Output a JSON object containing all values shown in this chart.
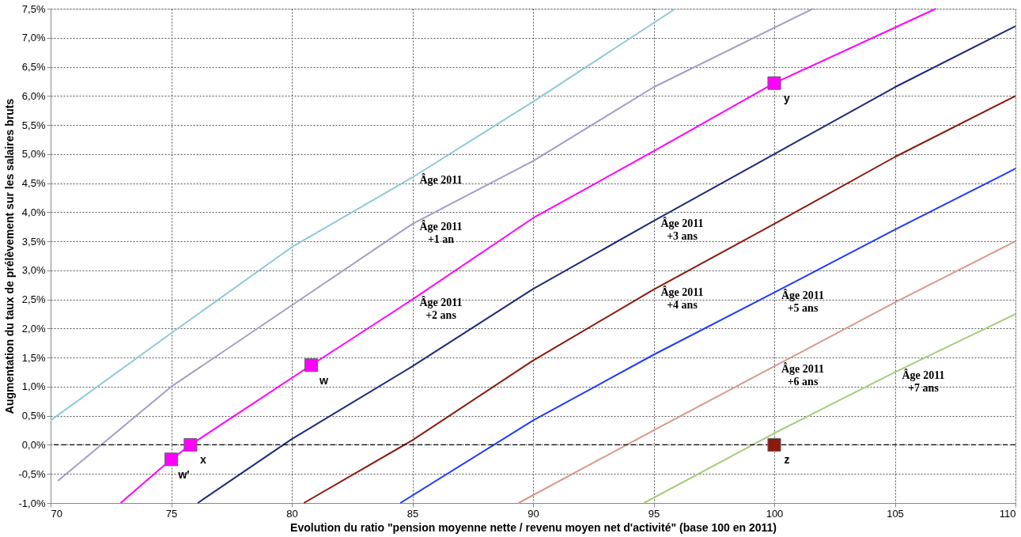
{
  "chart_data": {
    "type": "line",
    "xlabel": "Evolution du ratio \"pension moyenne nette / revenu moyen net d'activité\" (base 100 en 2011)",
    "ylabel": "Augmentation du taux de prélèvement sur les salaires bruts",
    "xlim": [
      70,
      110
    ],
    "xticks": [
      70,
      75,
      80,
      85,
      90,
      95,
      100,
      105,
      110
    ],
    "ylim": [
      -1.0,
      7.5
    ],
    "yticks": [
      {
        "value": -1.0,
        "label": "-1,0%"
      },
      {
        "value": -0.5,
        "label": "-0,5%"
      },
      {
        "value": 0.0,
        "label": "0,0%"
      },
      {
        "value": 0.5,
        "label": "0,5%"
      },
      {
        "value": 1.0,
        "label": "1,0%"
      },
      {
        "value": 1.5,
        "label": "1,5%"
      },
      {
        "value": 2.0,
        "label": "2,0%"
      },
      {
        "value": 2.5,
        "label": "2,5%"
      },
      {
        "value": 3.0,
        "label": "3,0%"
      },
      {
        "value": 3.5,
        "label": "3,5%"
      },
      {
        "value": 4.0,
        "label": "4,0%"
      },
      {
        "value": 4.5,
        "label": "4,5%"
      },
      {
        "value": 5.0,
        "label": "5,0%"
      },
      {
        "value": 5.5,
        "label": "5,5%"
      },
      {
        "value": 6.0,
        "label": "6,0%"
      },
      {
        "value": 6.5,
        "label": "6,5%"
      },
      {
        "value": 7.0,
        "label": "7,0%"
      },
      {
        "value": 7.5,
        "label": "7,5%"
      }
    ],
    "grid": true,
    "legend": false,
    "line_style": "solid",
    "series": [
      {
        "name": "Âge 2011",
        "color": "#8ec9d6",
        "x": [
          70,
          75,
          80,
          85,
          90,
          95.9
        ],
        "values": [
          0.42,
          1.92,
          3.4,
          4.6,
          5.9,
          7.5
        ]
      },
      {
        "name": "Âge 2011\n+1 an",
        "color": "#a89cc8",
        "x": [
          70.3,
          75,
          80,
          85,
          90,
          95,
          101.6
        ],
        "values": [
          -0.62,
          1.0,
          2.4,
          3.8,
          4.88,
          6.15,
          7.5
        ]
      },
      {
        "name": "Âge  2011\n+2 ans",
        "color": "#ff00ff",
        "x": [
          72.9,
          75,
          75.8,
          80.8,
          85,
          90,
          95,
          100,
          106.7
        ],
        "values": [
          -1.0,
          -0.25,
          0.0,
          1.37,
          2.5,
          3.9,
          5.05,
          6.22,
          7.5
        ]
      },
      {
        "name": "Âge 2011\n+3 ans",
        "color": "#1f2a7a",
        "x": [
          76.1,
          80,
          85,
          90,
          95,
          100,
          105,
          110
        ],
        "values": [
          -1.0,
          0.1,
          1.35,
          2.68,
          3.85,
          5.0,
          6.15,
          7.2
        ]
      },
      {
        "name": "Âge 2011\n+4 ans",
        "color": "#8b1a0a",
        "x": [
          80.5,
          85,
          90,
          95,
          100,
          105,
          110
        ],
        "values": [
          -1.0,
          0.08,
          1.45,
          2.67,
          3.8,
          4.95,
          6.0
        ]
      },
      {
        "name": "Âge 2011\n+5 ans",
        "color": "#1f3cff",
        "x": [
          84.5,
          90,
          95,
          100,
          105,
          110
        ],
        "values": [
          -1.0,
          0.42,
          1.55,
          2.62,
          3.7,
          4.75
        ]
      },
      {
        "name": "Âge 2011\n+6 ans",
        "color": "#d99a8e",
        "x": [
          89.4,
          95,
          100,
          105,
          110
        ],
        "values": [
          -1.0,
          0.25,
          1.35,
          2.45,
          3.5
        ]
      },
      {
        "name": "Âge 2011\n+7 ans",
        "color": "#a8cc7c",
        "x": [
          94.6,
          100,
          105,
          110
        ],
        "values": [
          -1.0,
          0.2,
          1.25,
          2.25
        ]
      },
      {
        "type": "scatter",
        "marker": "square",
        "color": "#ff00ff",
        "x": [
          75.0,
          75.8,
          80.8,
          100.0
        ],
        "values": [
          -0.25,
          0.0,
          1.37,
          6.22
        ],
        "value_labels": [
          "w'",
          "x",
          "w",
          "y"
        ]
      },
      {
        "type": "scatter",
        "marker": "square",
        "color": "#8b1a0a",
        "x": [
          100.0
        ],
        "values": [
          0.0
        ],
        "value_labels": [
          "z"
        ]
      }
    ],
    "ref_lines": [
      {
        "axis": "y",
        "value": 0,
        "color": "#000000",
        "line_style": "dashed"
      }
    ]
  }
}
